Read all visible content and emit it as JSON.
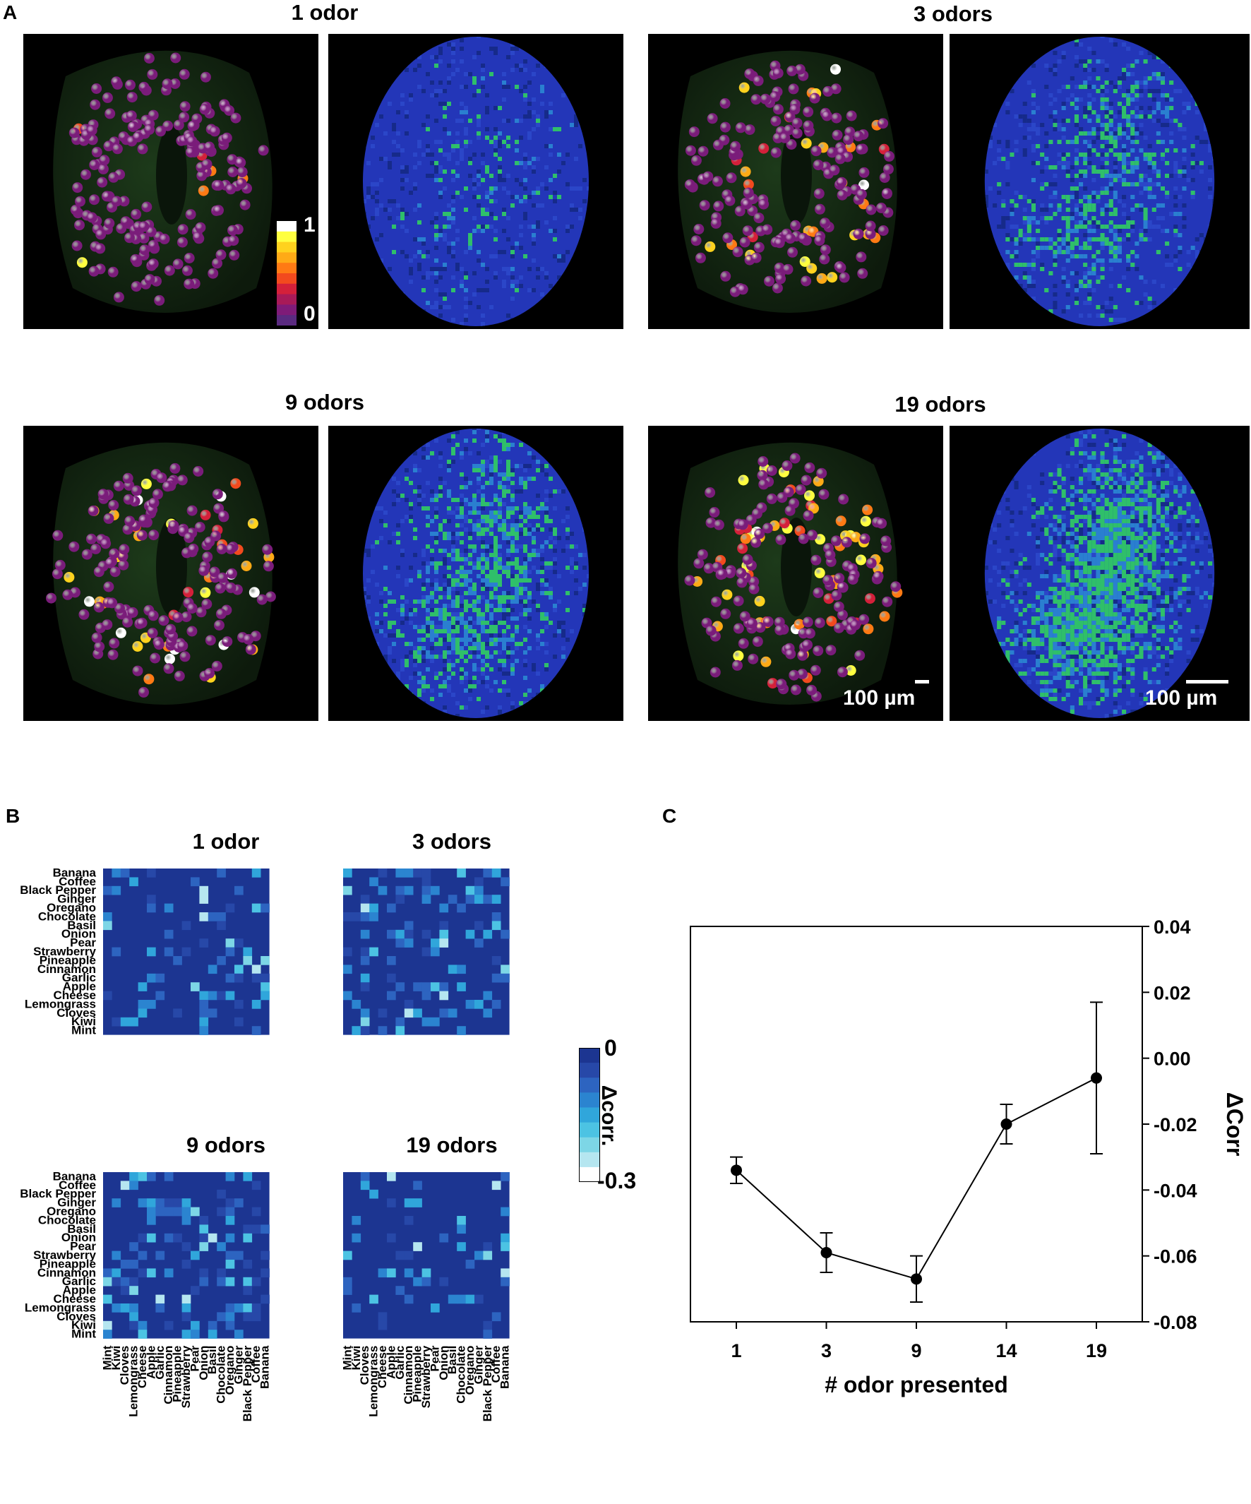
{
  "panel_a": {
    "letter": "A",
    "titles": [
      "1 odor",
      "3 odors",
      "9 odors",
      "19 odors"
    ],
    "colorbar": {
      "max_label": "1",
      "min_label": "0",
      "colors": [
        "#ffffff",
        "#ffff40",
        "#ffd21e",
        "#ffaa16",
        "#ff7a14",
        "#f24a1e",
        "#d4203a",
        "#a81a58",
        "#7f1b78",
        "#5a2a80"
      ]
    },
    "scale_bars": [
      "100 µm",
      "100 µm"
    ]
  },
  "panel_b": {
    "letter": "B",
    "titles": [
      "1 odor",
      "3 odors",
      "9 odors",
      "19 odors"
    ],
    "row_labels": [
      "Banana",
      "Coffee",
      "Black Pepper",
      "Ginger",
      "Oregano",
      "Chocolate",
      "Basil",
      "Onion",
      "Pear",
      "Strawberry",
      "Pineapple",
      "Cinnamon",
      "Garlic",
      "Apple",
      "Cheese",
      "Lemongrass",
      "Cloves",
      "Kiwi",
      "Mint"
    ],
    "col_labels": [
      "Mint",
      "Kiwi",
      "Cloves",
      "Lemongrass",
      "Cheese",
      "Apple",
      "Garlic",
      "Cinnamon",
      "Pineapple",
      "Strawberry",
      "Pear",
      "Onion",
      "Basil",
      "Chocolate",
      "Oregano",
      "Ginger",
      "Black Pepper",
      "Coffee",
      "Banana"
    ],
    "colorbar": {
      "max_label": "0",
      "min_label": "-0.3",
      "title": "Δcorr.",
      "colors": [
        "#1c3591",
        "#2748a8",
        "#2d64c0",
        "#2b84d0",
        "#30a6db",
        "#4cc3e3",
        "#7dd6e6",
        "#b5e6f0",
        "#ffffff"
      ]
    }
  },
  "chart_data": {
    "type": "line",
    "letter": "C",
    "x": [
      "1",
      "3",
      "9",
      "14",
      "19"
    ],
    "series": [
      {
        "values": [
          -0.034,
          -0.059,
          -0.067,
          -0.02,
          -0.006
        ],
        "errors": [
          0.004,
          0.006,
          0.007,
          0.006,
          0.023
        ]
      }
    ],
    "xlabel": "# odor presented",
    "ylabel": "ΔCorr",
    "ylim": [
      -0.08,
      0.04
    ],
    "yticks": [
      "0.04",
      "0.02",
      "0.00",
      "-0.02",
      "-0.04",
      "-0.06",
      "-0.08"
    ],
    "ytick_values": [
      0.04,
      0.02,
      0.0,
      -0.02,
      -0.04,
      -0.06,
      -0.08
    ],
    "grid": false,
    "y_axis_side": "right"
  }
}
